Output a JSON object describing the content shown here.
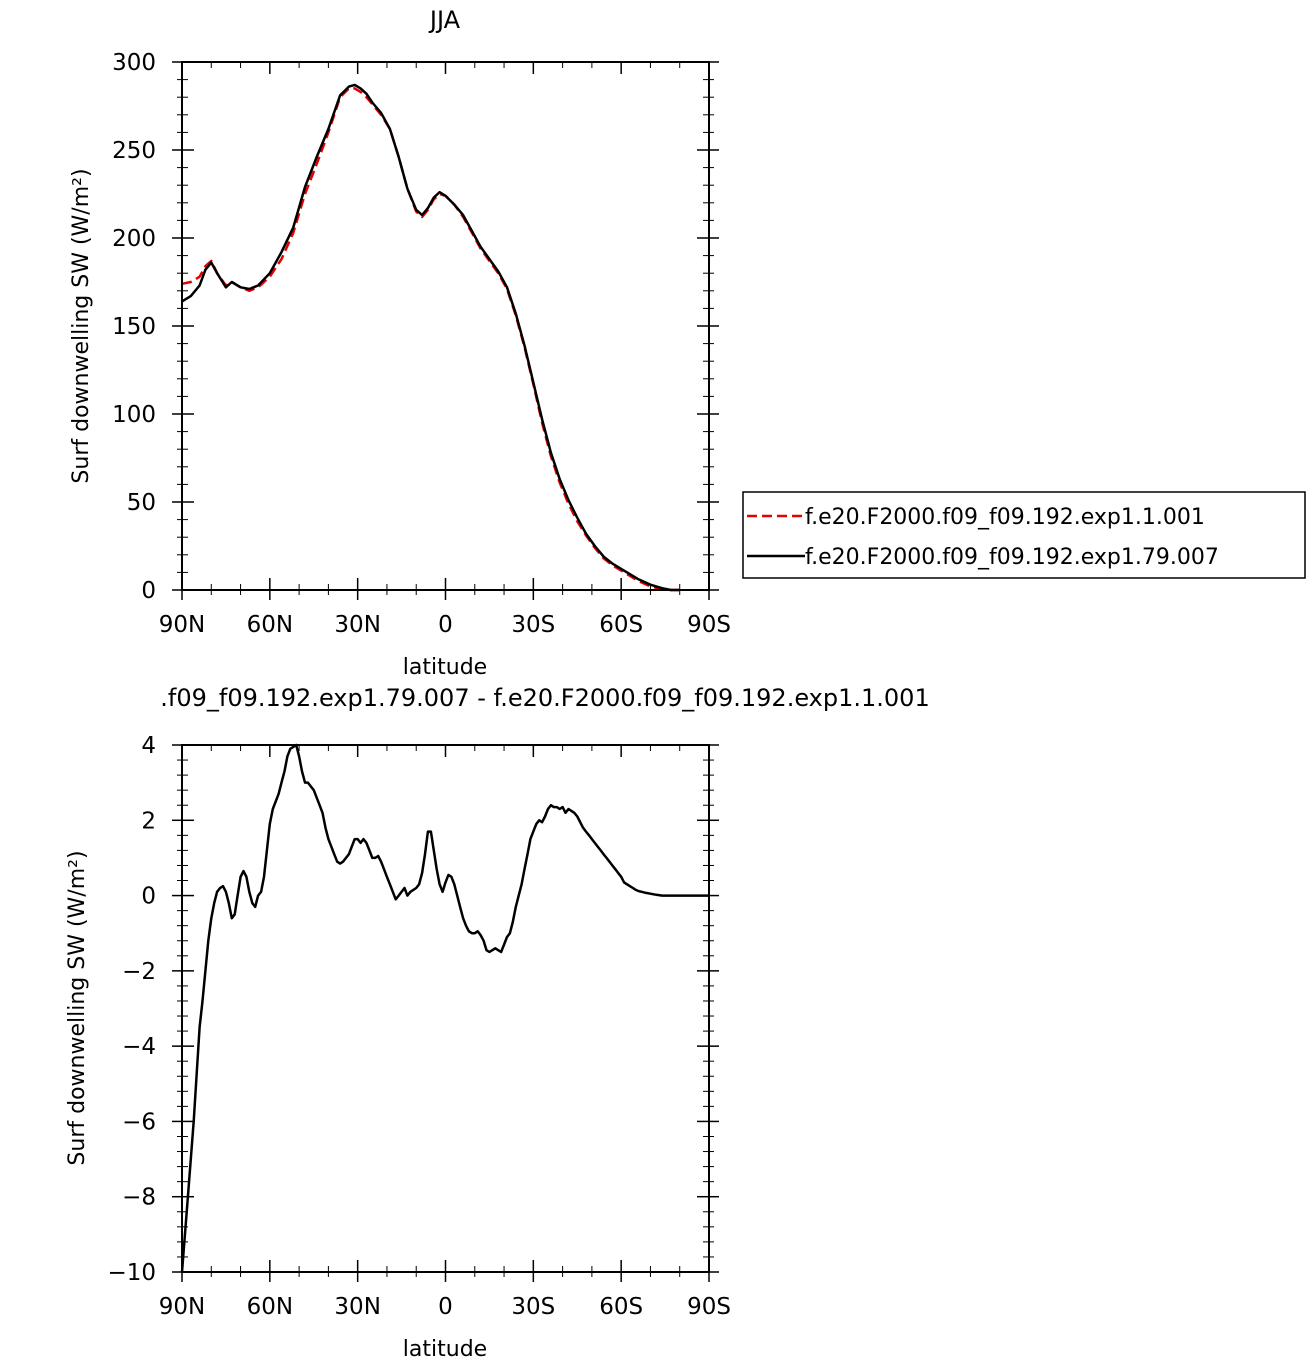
{
  "chart_data": [
    {
      "type": "line",
      "title": "JJA",
      "xlabel": "latitude",
      "ylabel": "Surf downwelling SW (W/m²)",
      "xlim": [
        90,
        -90
      ],
      "ylim": [
        0,
        300
      ],
      "xticks": [
        90,
        60,
        30,
        0,
        -30,
        -60,
        -90
      ],
      "xtick_labels": [
        "90N",
        "60N",
        "30N",
        "0",
        "30S",
        "60S",
        "90S"
      ],
      "yticks": [
        0,
        50,
        100,
        150,
        200,
        250,
        300
      ],
      "ytick_labels": [
        "0",
        "50",
        "100",
        "150",
        "200",
        "250",
        "300"
      ],
      "grid": false,
      "legend_position": "right",
      "series": [
        {
          "name": "f.e20.F2000.f09_f09.192.exp1.1.001",
          "color": "#e60000",
          "dash": "dashed",
          "x": [
            90,
            87,
            84,
            82,
            80,
            78,
            75,
            73,
            70,
            67,
            64,
            60,
            56,
            52,
            48,
            44,
            40,
            36,
            33,
            31,
            29,
            27,
            25,
            22,
            19,
            16,
            13,
            10,
            8,
            6,
            4,
            2,
            0,
            -3,
            -6,
            -9,
            -12,
            -15,
            -18,
            -21,
            -24,
            -27,
            -30,
            -33,
            -36,
            -39,
            -42,
            -45,
            -48,
            -51,
            -54,
            -57,
            -60,
            -63,
            -66,
            -70,
            -74,
            -77,
            -80
          ],
          "y": [
            174,
            175,
            178,
            184,
            187,
            180,
            173,
            175,
            172,
            170,
            172,
            178,
            188,
            203,
            225,
            242,
            260,
            280,
            285,
            285,
            283,
            280,
            276,
            270,
            262,
            246,
            228,
            215,
            212,
            216,
            222,
            225,
            224,
            219,
            212,
            203,
            194,
            187,
            180,
            171,
            156,
            138,
            117,
            95,
            76,
            61,
            49,
            39,
            31,
            24,
            18,
            14,
            11,
            8,
            5,
            2,
            0.5,
            0,
            0
          ]
        },
        {
          "name": "f.e20.F2000.f09_f09.192.exp1.79.007",
          "color": "#000000",
          "dash": "solid",
          "x": [
            90,
            87,
            84,
            82,
            80,
            78,
            75,
            73,
            70,
            67,
            64,
            60,
            56,
            52,
            48,
            44,
            40,
            36,
            33,
            31,
            29,
            27,
            25,
            22,
            19,
            16,
            13,
            10,
            8,
            6,
            4,
            2,
            0,
            -3,
            -6,
            -9,
            -12,
            -15,
            -18,
            -21,
            -24,
            -27,
            -30,
            -33,
            -36,
            -39,
            -42,
            -45,
            -48,
            -51,
            -54,
            -57,
            -60,
            -63,
            -66,
            -70,
            -74,
            -77,
            -80
          ],
          "y": [
            164,
            167,
            173,
            182,
            186,
            180,
            172,
            175,
            172,
            171,
            173,
            180,
            192,
            206,
            229,
            246,
            262,
            281,
            286,
            287,
            285,
            282,
            277,
            271,
            262,
            246,
            228,
            216,
            213,
            217,
            223,
            226,
            224,
            219,
            213,
            204,
            195,
            188,
            181,
            172,
            157,
            139,
            118,
            97,
            78,
            63,
            51,
            41,
            32,
            25,
            19,
            15,
            12,
            9,
            6,
            3,
            1,
            0,
            0
          ]
        }
      ]
    },
    {
      "type": "line",
      "title": ".f09_f09.192.exp1.79.007 - f.e20.F2000.f09_f09.192.exp1.1.001",
      "xlabel": "latitude",
      "ylabel": "Surf downwelling SW (W/m²)",
      "xlim": [
        90,
        -90
      ],
      "ylim": [
        -10,
        4
      ],
      "xticks": [
        90,
        60,
        30,
        0,
        -30,
        -60,
        -90
      ],
      "xtick_labels": [
        "90N",
        "60N",
        "30N",
        "0",
        "30S",
        "60S",
        "90S"
      ],
      "yticks": [
        -10,
        -8,
        -6,
        -4,
        -2,
        0,
        2,
        4
      ],
      "ytick_labels": [
        "−10",
        "−8",
        "−6",
        "−4",
        "−2",
        "0",
        "2",
        "4"
      ],
      "grid": false,
      "series": [
        {
          "name": "",
          "color": "#000000",
          "dash": "solid",
          "x": [
            90,
            88,
            86,
            84,
            83,
            82,
            81,
            80,
            79,
            78,
            77,
            76,
            75,
            74,
            73,
            72,
            71,
            70,
            69,
            68,
            67,
            66,
            65,
            64,
            63,
            62,
            61,
            60,
            59,
            58,
            57,
            56,
            55,
            54,
            53,
            52,
            51,
            50,
            49,
            48,
            47,
            46,
            45,
            44,
            43,
            42,
            41,
            40,
            39,
            38,
            37,
            36,
            35,
            34,
            33,
            32,
            31,
            30,
            29,
            28,
            27,
            26,
            25,
            24,
            23,
            22,
            21,
            20,
            19,
            18,
            17,
            16,
            15,
            14,
            13,
            12,
            11,
            10,
            9,
            8,
            7,
            6,
            5,
            4,
            3,
            2,
            1,
            0,
            -1,
            -2,
            -3,
            -4,
            -5,
            -6,
            -7,
            -8,
            -9,
            -10,
            -11,
            -12,
            -13,
            -14,
            -15,
            -16,
            -17,
            -18,
            -19,
            -20,
            -21,
            -22,
            -23,
            -24,
            -25,
            -26,
            -27,
            -28,
            -29,
            -30,
            -31,
            -32,
            -33,
            -34,
            -35,
            -36,
            -37,
            -38,
            -39,
            -40,
            -41,
            -42,
            -43,
            -44,
            -45,
            -46,
            -47,
            -48,
            -49,
            -50,
            -51,
            -52,
            -53,
            -54,
            -55,
            -56,
            -57,
            -58,
            -59,
            -60,
            -61,
            -62,
            -63,
            -64,
            -65,
            -66,
            -67,
            -68,
            -70,
            -72,
            -74,
            -76,
            -78,
            -80,
            -82,
            -85,
            -88,
            -90
          ],
          "y": [
            -10,
            -8,
            -6,
            -3.5,
            -2.8,
            -2,
            -1.2,
            -0.6,
            -0.2,
            0.1,
            0.2,
            0.25,
            0.1,
            -0.2,
            -0.6,
            -0.5,
            0.0,
            0.5,
            0.65,
            0.5,
            0.1,
            -0.2,
            -0.3,
            0.0,
            0.1,
            0.5,
            1.2,
            1.9,
            2.3,
            2.5,
            2.7,
            3.0,
            3.3,
            3.7,
            3.9,
            3.95,
            4.0,
            3.7,
            3.3,
            3.0,
            3.0,
            2.9,
            2.8,
            2.6,
            2.4,
            2.2,
            1.8,
            1.5,
            1.3,
            1.1,
            0.9,
            0.85,
            0.9,
            1.0,
            1.1,
            1.3,
            1.5,
            1.5,
            1.4,
            1.5,
            1.4,
            1.2,
            1.0,
            1.0,
            1.05,
            0.9,
            0.7,
            0.5,
            0.3,
            0.1,
            -0.1,
            0.0,
            0.1,
            0.2,
            0.0,
            0.1,
            0.15,
            0.2,
            0.3,
            0.6,
            1.1,
            1.7,
            1.7,
            1.2,
            0.7,
            0.3,
            0.1,
            0.35,
            0.55,
            0.5,
            0.3,
            0.0,
            -0.3,
            -0.6,
            -0.8,
            -0.95,
            -1.0,
            -1.0,
            -0.95,
            -1.05,
            -1.2,
            -1.45,
            -1.5,
            -1.45,
            -1.4,
            -1.45,
            -1.5,
            -1.3,
            -1.1,
            -1.0,
            -0.7,
            -0.3,
            0.0,
            0.3,
            0.7,
            1.1,
            1.5,
            1.7,
            1.9,
            2.0,
            1.95,
            2.1,
            2.3,
            2.4,
            2.35,
            2.35,
            2.3,
            2.35,
            2.2,
            2.3,
            2.25,
            2.2,
            2.1,
            1.95,
            1.8,
            1.7,
            1.6,
            1.5,
            1.4,
            1.3,
            1.2,
            1.1,
            1.0,
            0.9,
            0.8,
            0.7,
            0.6,
            0.5,
            0.35,
            0.3,
            0.25,
            0.2,
            0.15,
            0.12,
            0.1,
            0.08,
            0.05,
            0.02,
            0.0,
            0.0,
            0.0,
            0.0,
            0.0,
            0.0,
            0.0,
            0.0
          ]
        }
      ]
    }
  ]
}
